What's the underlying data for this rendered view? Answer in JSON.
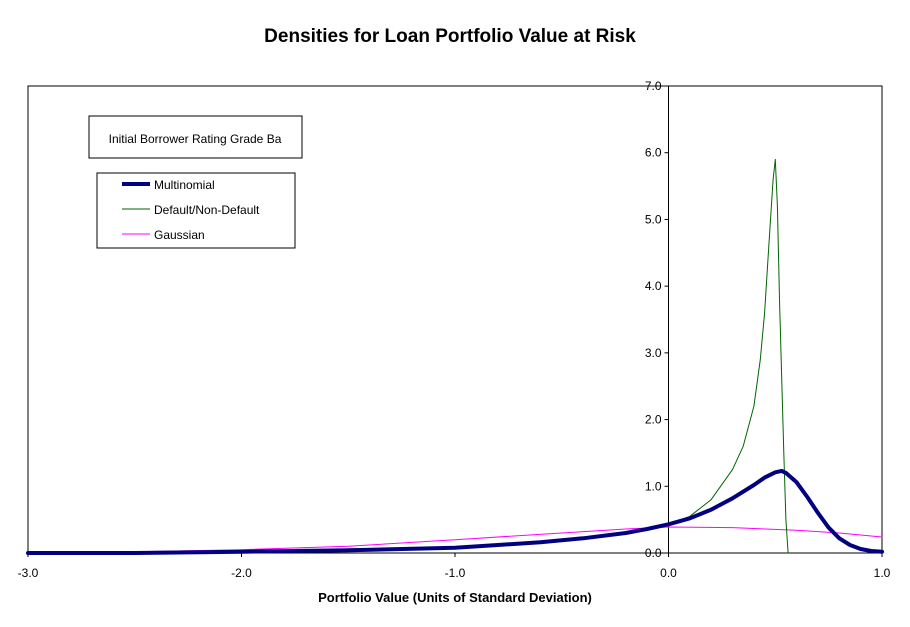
{
  "chart_data": {
    "type": "line",
    "title": "Densities for Loan Portfolio Value at Risk",
    "subtitle": "Initial Borrower Rating Grade Ba",
    "xlabel": "Portfolio Value (Units of Standard Deviation)",
    "ylabel": "",
    "xlim": [
      -3.0,
      1.0
    ],
    "ylim": [
      0.0,
      7.0
    ],
    "x_ticks": [
      "-3.0",
      "-2.0",
      "-1.0",
      "0.0",
      "1.0"
    ],
    "y_ticks": [
      "0.0",
      "1.0",
      "2.0",
      "3.0",
      "4.0",
      "5.0",
      "6.0",
      "7.0"
    ],
    "grid": false,
    "legend_position": "top-left",
    "series": [
      {
        "name": "Multinomial",
        "color": "#000080",
        "style": "thick",
        "x": [
          -3.0,
          -2.5,
          -2.0,
          -1.5,
          -1.0,
          -0.8,
          -0.6,
          -0.4,
          -0.2,
          -0.1,
          0.0,
          0.1,
          0.2,
          0.3,
          0.4,
          0.45,
          0.5,
          0.53,
          0.55,
          0.6,
          0.65,
          0.7,
          0.75,
          0.8,
          0.85,
          0.9,
          0.95,
          1.0
        ],
        "y": [
          0.0,
          0.0,
          0.02,
          0.04,
          0.08,
          0.12,
          0.16,
          0.22,
          0.3,
          0.36,
          0.43,
          0.52,
          0.65,
          0.82,
          1.02,
          1.13,
          1.21,
          1.23,
          1.2,
          1.06,
          0.84,
          0.6,
          0.38,
          0.22,
          0.12,
          0.06,
          0.03,
          0.02
        ]
      },
      {
        "name": "Default/Non-Default",
        "color": "#006400",
        "style": "thin",
        "x": [
          0.0,
          0.1,
          0.2,
          0.3,
          0.35,
          0.4,
          0.43,
          0.45,
          0.47,
          0.49,
          0.5,
          0.51,
          0.52,
          0.54,
          0.55,
          0.56
        ],
        "y": [
          0.43,
          0.55,
          0.8,
          1.25,
          1.6,
          2.2,
          2.9,
          3.6,
          4.6,
          5.6,
          5.9,
          5.2,
          3.8,
          1.5,
          0.5,
          0.0
        ]
      },
      {
        "name": "Gaussian",
        "color": "#ff00ff",
        "style": "thin",
        "x": [
          -3.0,
          -2.5,
          -2.0,
          -1.5,
          -1.0,
          -0.5,
          -0.2,
          0.0,
          0.3,
          0.6,
          0.8,
          1.0
        ],
        "y": [
          0.01,
          0.02,
          0.05,
          0.1,
          0.2,
          0.3,
          0.36,
          0.39,
          0.38,
          0.34,
          0.3,
          0.24
        ]
      }
    ]
  }
}
